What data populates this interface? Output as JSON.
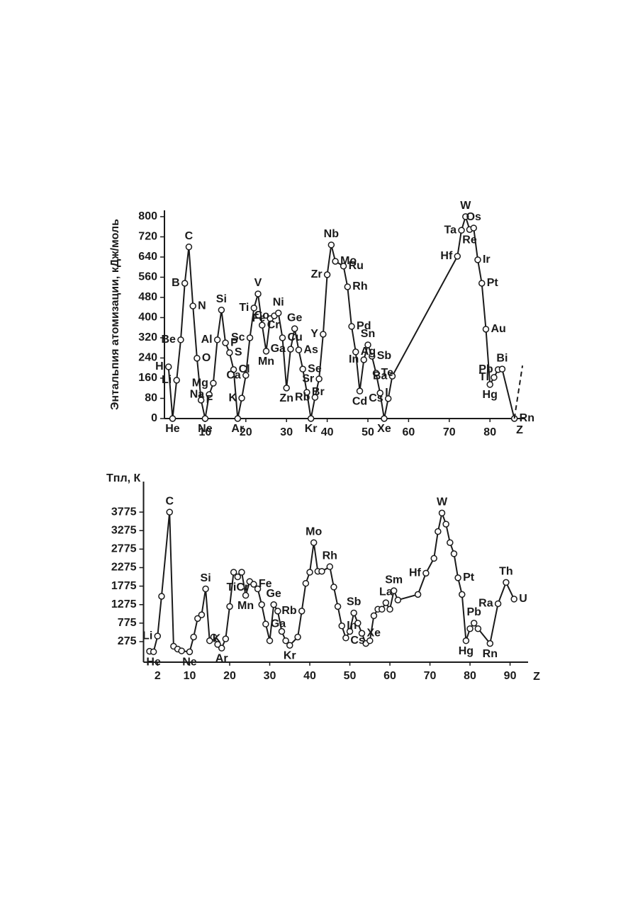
{
  "chart_data": [
    {
      "type": "line",
      "y_label": "Энтальпия атомизации, кДж/моль",
      "x_label": "Z",
      "xlim": [
        0,
        88.5
      ],
      "ylim": [
        0,
        825
      ],
      "xticks": [
        10,
        20,
        30,
        40,
        50,
        60,
        70,
        80
      ],
      "yticks": [
        0,
        80,
        160,
        240,
        320,
        400,
        480,
        560,
        640,
        720,
        800
      ],
      "series": [
        {
          "color": "#1a1a1a",
          "markers": true,
          "dashed": false,
          "x": [
            1,
            2,
            3,
            4,
            5,
            6,
            7,
            8,
            9,
            10,
            11,
            12,
            13,
            14,
            15,
            16,
            17,
            18,
            19,
            20,
            21,
            22,
            23,
            24,
            25,
            26,
            27,
            28,
            29,
            30,
            31,
            32,
            33,
            34,
            35,
            36,
            37,
            38,
            39,
            40,
            41,
            42,
            44,
            45,
            46,
            47,
            48,
            49,
            50,
            51,
            52,
            53,
            54,
            55,
            56,
            72,
            73,
            74,
            75,
            76,
            77,
            78,
            79,
            80,
            81,
            82,
            83,
            86
          ],
          "values": [
            205,
            0,
            152,
            312,
            536,
            680,
            446,
            239,
            73,
            0,
            95,
            140,
            312,
            430,
            300,
            261,
            194,
            0,
            81,
            171,
            320,
            438,
            494,
            370,
            267,
            396,
            407,
            418,
            320,
            121,
            275,
            356,
            272,
            196,
            104,
            0,
            84,
            157,
            334,
            570,
            688,
            623,
            604,
            522,
            365,
            264,
            109,
            233,
            292,
            247,
            180,
            101,
            0,
            79,
            168,
            643,
            746,
            800,
            749,
            755,
            629,
            536,
            354,
            135,
            163,
            194,
            196,
            0
          ],
          "point_labels": [
            "H",
            "He",
            "Li",
            "Be",
            "B",
            "C",
            "N",
            "O",
            "F",
            "Ne",
            "Na",
            "Mg",
            "Al",
            "Si",
            "P",
            "S",
            "Cl",
            "Ar",
            "K",
            "Ca",
            "Sc",
            "Ti",
            "V",
            "Cr",
            "Mn",
            "Fe",
            "Co",
            "Ni",
            "Cu",
            "Zn",
            "Ga",
            "Ge",
            "As",
            "Se",
            "Br",
            "Kr",
            "Rb",
            "Sr",
            "Y",
            "Zr",
            "Nb",
            "Mo",
            "Ru",
            "Rh",
            "Pd",
            "Ag",
            "Cd",
            "In",
            "Sn",
            "Sb",
            "Te",
            "I",
            "Xe",
            "Cs",
            "Ba",
            "Hf",
            "Ta",
            "W",
            "Re",
            "Os",
            "Ir",
            "Pt",
            "Au",
            "Hg",
            "Tl",
            "Pb",
            "Bi",
            "Rn"
          ]
        },
        {
          "color": "#1a1a1a",
          "markers": false,
          "dashed": true,
          "x": [
            86,
            88
          ],
          "values": [
            0,
            210
          ]
        }
      ]
    },
    {
      "type": "line",
      "y_label": "Tпл, К",
      "x_label": "Z",
      "xlim": [
        -1.5,
        94.5
      ],
      "ylim": [
        -280,
        4600
      ],
      "xticks": [
        2,
        10,
        20,
        30,
        40,
        50,
        60,
        70,
        80,
        90
      ],
      "yticks": [
        275,
        775,
        1275,
        1775,
        2275,
        2775,
        3275,
        3775
      ],
      "series": [
        {
          "color": "#1a1a1a",
          "markers": true,
          "dashed": false,
          "x": [
            0,
            1,
            2,
            3,
            5,
            6,
            7,
            8,
            10,
            11,
            12,
            13,
            14,
            15,
            16,
            17,
            18,
            19,
            20,
            21,
            22,
            23,
            24,
            25,
            26,
            27,
            28,
            29,
            30,
            31,
            32,
            33,
            34,
            35,
            37,
            38,
            39,
            40,
            41,
            42,
            43,
            45,
            46,
            47,
            48,
            49,
            50,
            51,
            52,
            53,
            54,
            55,
            56,
            57,
            58,
            59,
            60,
            61,
            62,
            67,
            69,
            71,
            72,
            73,
            74,
            75,
            76,
            77,
            78,
            79,
            80,
            81,
            82,
            85,
            87,
            89,
            91
          ],
          "values": [
            14,
            1,
            425,
            1500,
            3775,
            150,
            75,
            25,
            0,
            400,
            900,
            1000,
            1700,
            300,
            400,
            200,
            100,
            350,
            1225,
            2150,
            2025,
            2150,
            1525,
            1900,
            1825,
            1700,
            1275,
            750,
            300,
            1275,
            1100,
            550,
            300,
            175,
            400,
            1100,
            1850,
            2150,
            2950,
            2175,
            2175,
            2300,
            1750,
            1225,
            700,
            375,
            550,
            1050,
            775,
            500,
            225,
            300,
            975,
            1150,
            1150,
            1325,
            1150,
            1650,
            1400,
            1550,
            2125,
            2525,
            3250,
            3750,
            3450,
            2950,
            2650,
            2000,
            1550,
            300,
            625,
            775,
            625,
            225,
            1300,
            1875,
            1425
          ],
          "point_labels": [
            null,
            "He",
            "Li",
            null,
            "C",
            null,
            null,
            null,
            "Ne",
            null,
            null,
            null,
            "Si",
            null,
            null,
            null,
            "Ar",
            "K",
            null,
            null,
            "TiCr",
            null,
            "Mn",
            null,
            "Fe",
            null,
            null,
            "Ga",
            null,
            "Ge",
            null,
            null,
            null,
            "Kr",
            null,
            "Rb",
            null,
            null,
            "Mo",
            null,
            null,
            "Rh",
            null,
            null,
            "In",
            null,
            null,
            "Sb",
            null,
            "Xe",
            null,
            "Cs",
            null,
            null,
            null,
            "La",
            null,
            "Sm",
            null,
            null,
            "Hf",
            null,
            null,
            "W",
            null,
            null,
            null,
            "Pt",
            null,
            "Hg",
            null,
            "Pb",
            null,
            "Rn",
            "Ra",
            "Th",
            "U"
          ]
        }
      ]
    }
  ]
}
